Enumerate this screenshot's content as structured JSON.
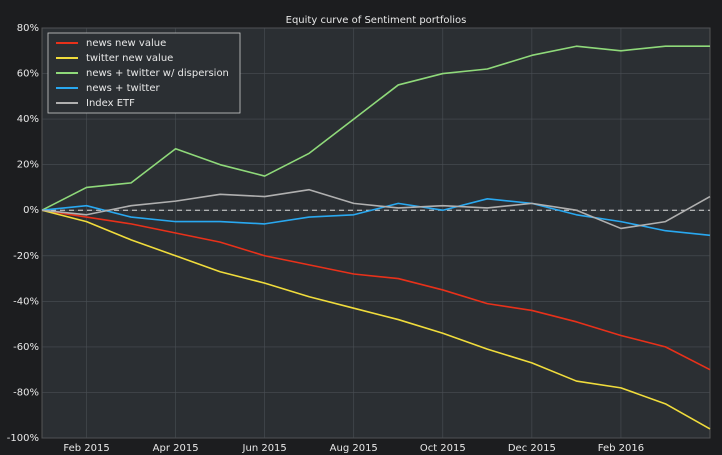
{
  "chart_data": {
    "type": "line",
    "title": "Equity curve of Sentiment portfolios",
    "x": [
      "2015-01",
      "2015-02",
      "2015-03",
      "2015-04",
      "2015-05",
      "2015-06",
      "2015-07",
      "2015-08",
      "2015-09",
      "2015-10",
      "2015-11",
      "2015-12",
      "2016-01",
      "2016-02",
      "2016-03",
      "2016-04"
    ],
    "series": [
      {
        "name": "news new value",
        "color": "#e8311a",
        "values": [
          0,
          -3,
          -6,
          -10,
          -14,
          -20,
          -24,
          -28,
          -30,
          -35,
          -41,
          -44,
          -49,
          -55,
          -60,
          -70
        ]
      },
      {
        "name": "twitter new value",
        "color": "#f0dc3c",
        "values": [
          0,
          -5,
          -13,
          -20,
          -27,
          -32,
          -38,
          -43,
          -48,
          -54,
          -61,
          -67,
          -75,
          -78,
          -85,
          -96
        ]
      },
      {
        "name": "news + twitter w/ dispersion",
        "color": "#8fd97a",
        "values": [
          0,
          10,
          12,
          27,
          20,
          15,
          25,
          40,
          55,
          60,
          62,
          68,
          72,
          70,
          72,
          72
        ]
      },
      {
        "name": "news + twitter",
        "color": "#29a8f0",
        "values": [
          0,
          2,
          -3,
          -5,
          -5,
          -6,
          -3,
          -2,
          3,
          0,
          5,
          3,
          -2,
          -5,
          -9,
          -11
        ]
      },
      {
        "name": "Index ETF",
        "color": "#b0b0b0",
        "values": [
          0,
          -2,
          2,
          4,
          7,
          6,
          9,
          3,
          1,
          2,
          1,
          3,
          0,
          -8,
          -5,
          6
        ]
      }
    ],
    "xlim": [
      "2015-01",
      "2016-04"
    ],
    "xticks": [
      {
        "value": "2015-02",
        "label": "Feb 2015"
      },
      {
        "value": "2015-04",
        "label": "Apr 2015"
      },
      {
        "value": "2015-06",
        "label": "Jun 2015"
      },
      {
        "value": "2015-08",
        "label": "Aug 2015"
      },
      {
        "value": "2015-10",
        "label": "Oct 2015"
      },
      {
        "value": "2015-12",
        "label": "Dec 2015"
      },
      {
        "value": "2016-02",
        "label": "Feb 2016"
      }
    ],
    "ylim": [
      -100,
      80
    ],
    "yticks": [
      {
        "value": -100,
        "label": "-100%"
      },
      {
        "value": -80,
        "label": "-80%"
      },
      {
        "value": -60,
        "label": "-60%"
      },
      {
        "value": -40,
        "label": "-40%"
      },
      {
        "value": -20,
        "label": "-20%"
      },
      {
        "value": 0,
        "label": "0%"
      },
      {
        "value": 20,
        "label": "20%"
      },
      {
        "value": 40,
        "label": "40%"
      },
      {
        "value": 60,
        "label": "60%"
      },
      {
        "value": 80,
        "label": "80%"
      }
    ],
    "hline": 0,
    "grid": true,
    "legend": "upper left"
  }
}
